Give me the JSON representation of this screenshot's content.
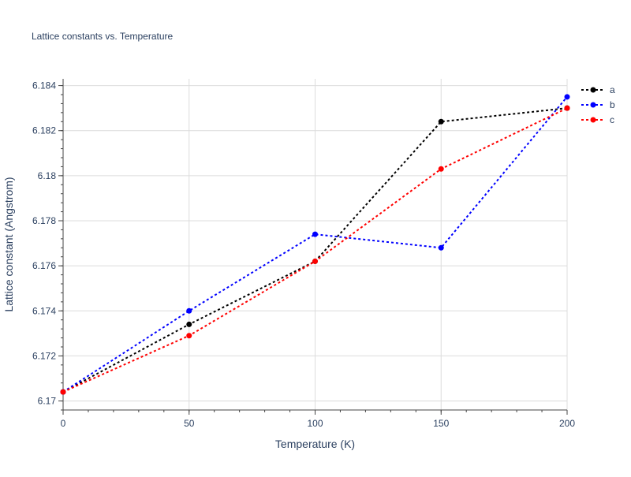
{
  "chart_data": {
    "type": "line",
    "title": "Lattice constants vs. Temperature",
    "xlabel": "Temperature (K)",
    "ylabel": "Lattice constant (Angstrom)",
    "x": [
      0,
      50,
      100,
      150,
      200
    ],
    "xlim": [
      0,
      200
    ],
    "ylim": [
      6.1696,
      6.1843
    ],
    "xticks": [
      0,
      50,
      100,
      150,
      200
    ],
    "xtick_labels": [
      "0",
      "50",
      "100",
      "150",
      "200"
    ],
    "yticks": [
      6.17,
      6.172,
      6.174,
      6.176,
      6.178,
      6.18,
      6.182,
      6.184
    ],
    "ytick_labels": [
      "6.17",
      "6.172",
      "6.174",
      "6.176",
      "6.178",
      "6.18",
      "6.182",
      "6.184"
    ],
    "grid": true,
    "legend_position": "top-right",
    "line_style": "dotted",
    "series": [
      {
        "name": "a",
        "color": "#000000",
        "values": [
          6.1704,
          6.1734,
          6.1762,
          6.1824,
          6.183
        ]
      },
      {
        "name": "b",
        "color": "#0000ff",
        "values": [
          6.1704,
          6.174,
          6.1774,
          6.1768,
          6.1835
        ]
      },
      {
        "name": "c",
        "color": "#ff0000",
        "values": [
          6.1704,
          6.1729,
          6.1762,
          6.1803,
          6.183
        ]
      }
    ]
  }
}
